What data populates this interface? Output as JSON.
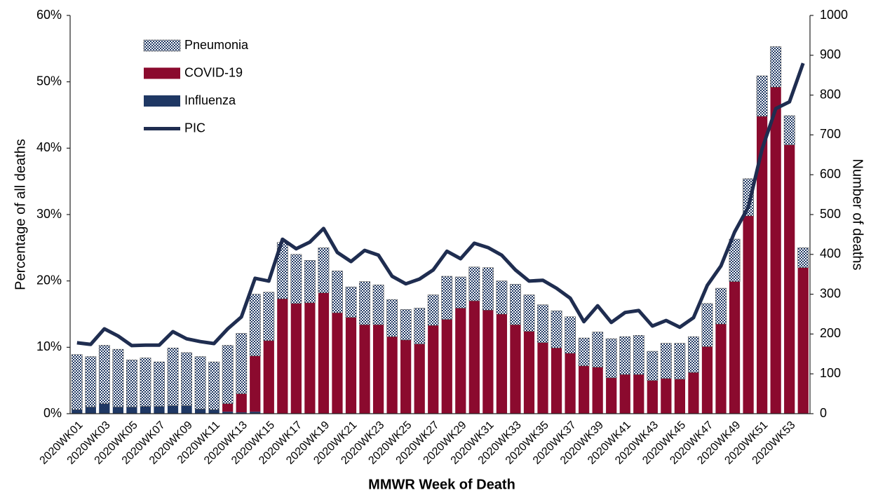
{
  "chart_data": {
    "type": "bar",
    "stacked": true,
    "y_label": "Percentage of all deaths",
    "y2_label": "Number of deaths",
    "x_label": "MMWR Week of Death",
    "legend": "upper left",
    "categories": [
      "2020WK01",
      null,
      "2020WK03",
      null,
      "2020WK05",
      null,
      "2020WK07",
      null,
      "2020WK09",
      null,
      "2020WK11",
      null,
      "2020WK13",
      null,
      "2020WK15",
      null,
      "2020WK17",
      null,
      "2020WK19",
      null,
      "2020WK21",
      null,
      "2020WK23",
      null,
      "2020WK25",
      null,
      "2020WK27",
      null,
      "2020WK29",
      null,
      "2020WK31",
      null,
      "2020WK33",
      null,
      "2020WK35",
      null,
      "2020WK37",
      null,
      "2020WK39",
      null,
      "2020WK41",
      null,
      "2020WK43",
      null,
      "2020WK45",
      null,
      "2020WK47",
      null,
      "2020WK49",
      null,
      "2020WK51",
      null,
      "2020WK53",
      null
    ],
    "series": [
      {
        "name": "Pneumonia",
        "type": "bar",
        "color": "#1f3864",
        "pattern": "checkerboard",
        "values": [
          8.3,
          7.6,
          8.8,
          8.7,
          7.1,
          7.3,
          6.7,
          8.7,
          8.0,
          7.9,
          7.2,
          8.8,
          9.1,
          9.3,
          7.3,
          8.5,
          7.4,
          6.4,
          6.8,
          6.3,
          4.6,
          6.5,
          6.0,
          5.6,
          4.6,
          5.4,
          4.6,
          6.5,
          4.7,
          5.1,
          6.4,
          5.0,
          6.1,
          5.5,
          5.7,
          5.6,
          5.5,
          4.2,
          5.3,
          5.9,
          5.7,
          5.9,
          4.4,
          5.3,
          5.4,
          5.4,
          6.5,
          5.4,
          6.4,
          5.6,
          6.1,
          6.1,
          4.4,
          3.0
        ]
      },
      {
        "name": "COVID-19",
        "type": "bar",
        "color": "#8b0a2e",
        "values": [
          0,
          0,
          0,
          0,
          0,
          0,
          0,
          0,
          0,
          0,
          0,
          1.2,
          2.8,
          8.4,
          11.0,
          17.3,
          16.6,
          16.7,
          18.2,
          15.2,
          14.5,
          13.4,
          13.4,
          11.6,
          11.1,
          10.5,
          13.3,
          14.2,
          15.9,
          17.0,
          15.6,
          15.0,
          13.4,
          12.4,
          10.7,
          9.9,
          9.1,
          7.2,
          7.0,
          5.4,
          5.9,
          5.9,
          5.0,
          5.3,
          5.2,
          6.2,
          10.1,
          13.5,
          19.9,
          29.8,
          44.8,
          49.2,
          40.5,
          22.0
        ]
      },
      {
        "name": "Influenza",
        "type": "bar",
        "color": "#1f3864",
        "values": [
          0.6,
          1.0,
          1.5,
          1.0,
          1.0,
          1.1,
          1.1,
          1.2,
          1.2,
          0.7,
          0.6,
          0.3,
          0.2,
          0.3,
          0,
          0,
          0,
          0,
          0,
          0,
          0,
          0,
          0,
          0,
          0,
          0,
          0,
          0,
          0,
          0,
          0,
          0,
          0,
          0,
          0,
          0,
          0,
          0,
          0,
          0,
          0,
          0,
          0,
          0,
          0,
          0,
          0,
          0,
          0,
          0,
          0,
          0,
          0,
          0
        ]
      },
      {
        "name": "PIC",
        "type": "line",
        "axis": "y2",
        "color": "#1f2d50",
        "values": [
          178,
          174,
          213,
          195,
          171,
          172,
          172,
          206,
          188,
          181,
          176,
          213,
          243,
          340,
          333,
          438,
          414,
          431,
          465,
          405,
          382,
          410,
          398,
          345,
          326,
          338,
          361,
          408,
          389,
          428,
          417,
          398,
          361,
          333,
          335,
          315,
          290,
          231,
          271,
          229,
          254,
          259,
          220,
          234,
          217,
          241,
          322,
          371,
          456,
          519,
          664,
          766,
          783,
          880
        ]
      }
    ],
    "ylim": [
      0,
      60
    ],
    "yticks": [
      {
        "value": 0,
        "label": "0%"
      },
      {
        "value": 10,
        "label": "10%"
      },
      {
        "value": 20,
        "label": "20%"
      },
      {
        "value": 30,
        "label": "30%"
      },
      {
        "value": 40,
        "label": "40%"
      },
      {
        "value": 50,
        "label": "50%"
      },
      {
        "value": 60,
        "label": "60%"
      }
    ],
    "y2lim": [
      0,
      1000
    ],
    "y2ticks": [
      0,
      100,
      200,
      300,
      400,
      500,
      600,
      700,
      800,
      900,
      1000
    ]
  }
}
